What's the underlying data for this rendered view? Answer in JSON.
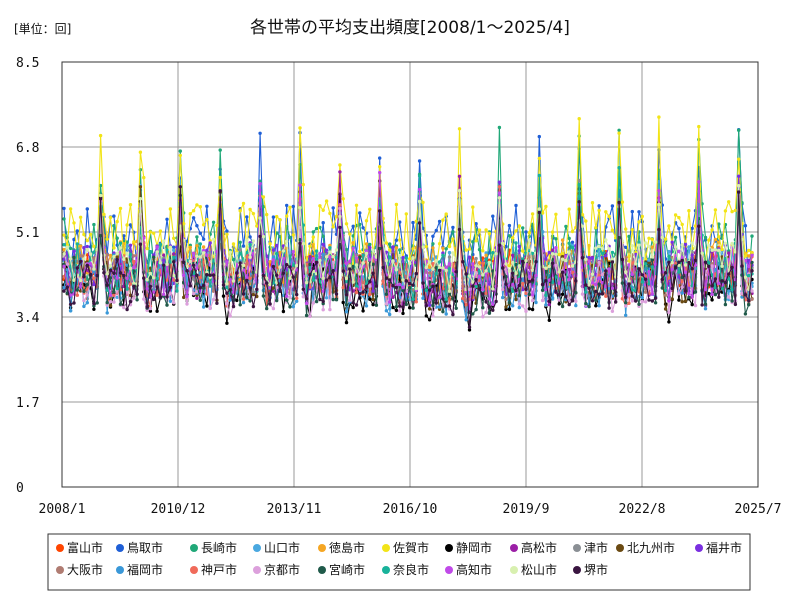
{
  "chart_data": {
    "type": "line",
    "title": "各世帯の平均支出頻度[2008/1～2025/4]",
    "unit_label": "[単位：回]",
    "xlabel": "",
    "ylabel": "",
    "ylim": [
      0,
      8.5
    ],
    "y_ticks": [
      0,
      1.7,
      3.4,
      5.1,
      6.8,
      8.5
    ],
    "y_tick_labels": [
      "0",
      "1.7",
      "3.4",
      "5.1",
      "6.8",
      "8.5"
    ],
    "x_range": [
      "2008/1",
      "2025/7"
    ],
    "x_ticks": [
      "2008/1",
      "2010/12",
      "2013/11",
      "2016/10",
      "2019/9",
      "2022/8",
      "2025/7"
    ],
    "grid": true,
    "legend_position": "bottom",
    "series": [
      {
        "name": "富山市",
        "color": "#ff4500",
        "base": 4.35,
        "amp": 0.45,
        "spike": 1.5,
        "seed": 1
      },
      {
        "name": "鳥取市",
        "color": "#1f5fd6",
        "base": 4.95,
        "amp": 0.7,
        "spike": 1.9,
        "seed": 2
      },
      {
        "name": "長崎市",
        "color": "#20a878",
        "base": 4.7,
        "amp": 0.6,
        "spike": 2.1,
        "seed": 3
      },
      {
        "name": "山口市",
        "color": "#4aa8e0",
        "base": 4.3,
        "amp": 0.55,
        "spike": 1.7,
        "seed": 4
      },
      {
        "name": "徳島市",
        "color": "#f5a623",
        "base": 4.5,
        "amp": 0.45,
        "spike": 1.4,
        "seed": 5
      },
      {
        "name": "佐賀市",
        "color": "#f2e418",
        "base": 5.1,
        "amp": 0.65,
        "spike": 1.9,
        "seed": 6
      },
      {
        "name": "静岡市",
        "color": "#000000",
        "base": 4.0,
        "amp": 0.5,
        "spike": 1.6,
        "seed": 7
      },
      {
        "name": "高松市",
        "color": "#9b1fa6",
        "base": 4.25,
        "amp": 0.5,
        "spike": 1.7,
        "seed": 8
      },
      {
        "name": "津市",
        "color": "#8a8f94",
        "base": 4.3,
        "amp": 0.45,
        "spike": 1.5,
        "seed": 9
      },
      {
        "name": "北九州市",
        "color": "#6b4a12",
        "base": 4.2,
        "amp": 0.5,
        "spike": 1.6,
        "seed": 10
      },
      {
        "name": "福井市",
        "color": "#7a2fe0",
        "base": 4.4,
        "amp": 0.5,
        "spike": 1.6,
        "seed": 11
      },
      {
        "name": "大阪市",
        "color": "#b07c72",
        "base": 4.2,
        "amp": 0.45,
        "spike": 1.4,
        "seed": 12
      },
      {
        "name": "福岡市",
        "color": "#3a98d8",
        "base": 4.1,
        "amp": 0.55,
        "spike": 1.5,
        "seed": 13
      },
      {
        "name": "神戸市",
        "color": "#f06a5a",
        "base": 4.2,
        "amp": 0.45,
        "spike": 1.5,
        "seed": 14
      },
      {
        "name": "京都市",
        "color": "#dca0dc",
        "base": 4.0,
        "amp": 0.5,
        "spike": 1.5,
        "seed": 15
      },
      {
        "name": "宮崎市",
        "color": "#205a4a",
        "base": 4.1,
        "amp": 0.5,
        "spike": 1.6,
        "seed": 16
      },
      {
        "name": "奈良市",
        "color": "#18b29a",
        "base": 4.4,
        "amp": 0.5,
        "spike": 1.7,
        "seed": 17
      },
      {
        "name": "高知市",
        "color": "#c04ae8",
        "base": 4.3,
        "amp": 0.5,
        "spike": 1.7,
        "seed": 18
      },
      {
        "name": "松山市",
        "color": "#d8f0b0",
        "base": 4.5,
        "amp": 0.45,
        "spike": 1.4,
        "seed": 19
      },
      {
        "name": "堺市",
        "color": "#3a1540",
        "base": 4.05,
        "amp": 0.5,
        "spike": 1.6,
        "seed": 20
      }
    ],
    "points_per_series": 208
  }
}
